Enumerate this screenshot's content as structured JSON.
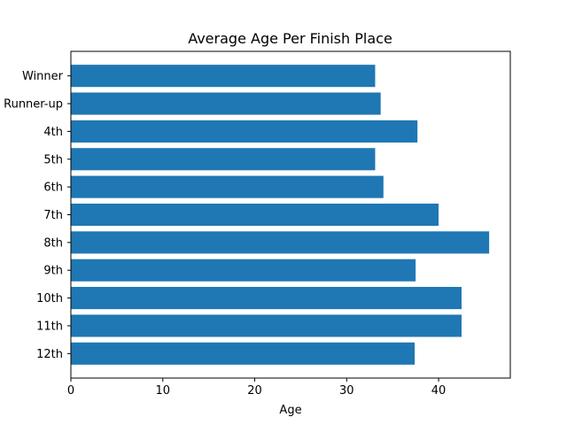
{
  "chart_data": {
    "type": "bar",
    "orientation": "horizontal",
    "title": "Average Age Per Finish Place",
    "xlabel": "Age",
    "ylabel": "",
    "categories": [
      "Winner",
      "Runner-up",
      "4th",
      "5th",
      "6th",
      "7th",
      "8th",
      "9th",
      "10th",
      "11th",
      "12th"
    ],
    "values": [
      33.1,
      33.7,
      37.7,
      33.1,
      34.0,
      40.0,
      45.5,
      37.5,
      42.5,
      42.5,
      37.4
    ],
    "xlim": [
      0,
      47.8
    ],
    "xticks": [
      0,
      10,
      20,
      30,
      40
    ],
    "bar_color": "#1f77b4",
    "grid": false,
    "legend": "none"
  }
}
